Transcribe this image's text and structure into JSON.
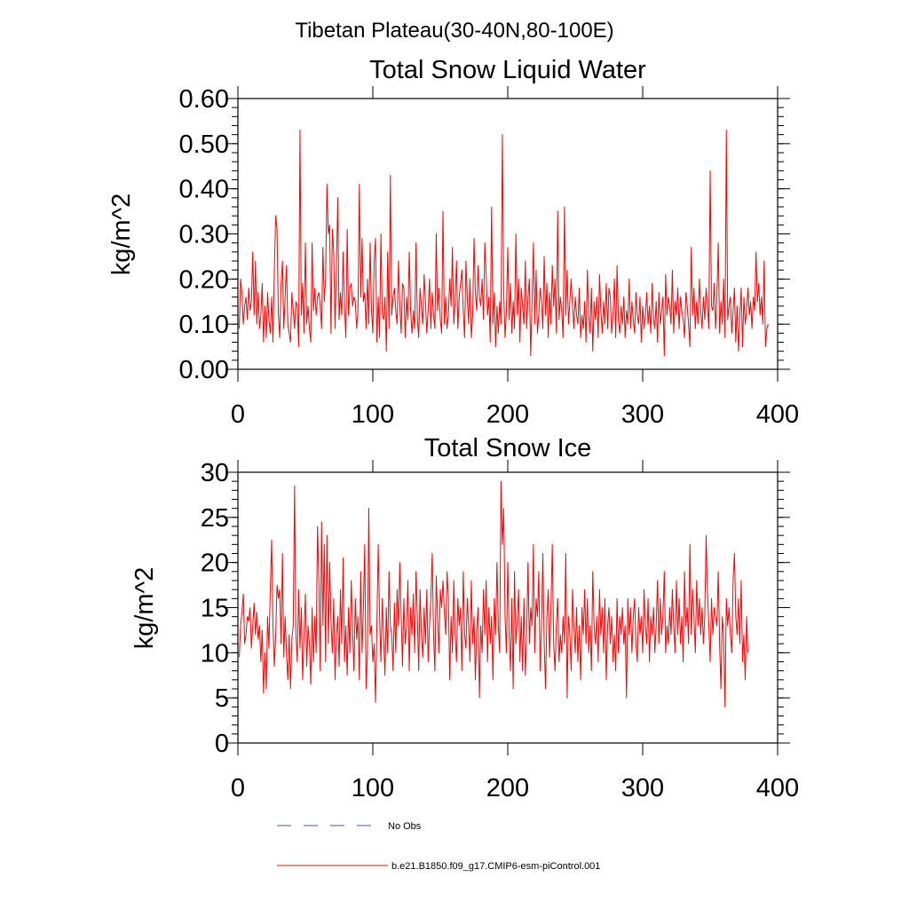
{
  "figure_title": "Tibetan Plateau(30-40N,80-100E)",
  "colors": {
    "model_line": "#ff0000",
    "obs_line": "#4a5a9a"
  },
  "legend": {
    "obs_label": "No Obs",
    "model_label": "b.e21.B1850.f09_g17.CMIP6-esm-piControl.001"
  },
  "chart_data": [
    {
      "type": "line",
      "title": "Total Snow Liquid Water",
      "xlabel": "",
      "ylabel": "kg/m^2",
      "xlim": [
        0,
        400
      ],
      "ylim": [
        0,
        0.6
      ],
      "xticks": [
        0,
        100,
        200,
        300,
        400
      ],
      "xtick_labels": [
        "0",
        "100",
        "200",
        "300",
        "400"
      ],
      "yticks": [
        0,
        0.1,
        0.2,
        0.3,
        0.4,
        0.5,
        0.6
      ],
      "ytick_labels": [
        "0.00",
        "0.10",
        "0.20",
        "0.30",
        "0.40",
        "0.50",
        "0.60"
      ],
      "series": [
        {
          "name": "b.e21.B1850.f09_g17.CMIP6-esm-piControl.001",
          "x_start": 1,
          "values": [
            0.09,
            0.2,
            0.17,
            0.1,
            0.14,
            0.16,
            0.11,
            0.18,
            0.13,
            0.15,
            0.26,
            0.12,
            0.24,
            0.1,
            0.17,
            0.09,
            0.12,
            0.19,
            0.06,
            0.14,
            0.07,
            0.17,
            0.11,
            0.08,
            0.16,
            0.06,
            0.22,
            0.34,
            0.31,
            0.12,
            0.07,
            0.19,
            0.24,
            0.09,
            0.16,
            0.23,
            0.1,
            0.08,
            0.06,
            0.17,
            0.13,
            0.09,
            0.15,
            0.14,
            0.05,
            0.53,
            0.12,
            0.19,
            0.08,
            0.28,
            0.1,
            0.14,
            0.09,
            0.06,
            0.28,
            0.13,
            0.18,
            0.12,
            0.16,
            0.17,
            0.14,
            0.09,
            0.27,
            0.15,
            0.2,
            0.41,
            0.3,
            0.32,
            0.08,
            0.31,
            0.26,
            0.09,
            0.22,
            0.38,
            0.11,
            0.17,
            0.12,
            0.26,
            0.14,
            0.07,
            0.31,
            0.12,
            0.18,
            0.19,
            0.14,
            0.16,
            0.15,
            0.09,
            0.13,
            0.41,
            0.16,
            0.29,
            0.15,
            0.17,
            0.09,
            0.2,
            0.1,
            0.28,
            0.13,
            0.08,
            0.24,
            0.29,
            0.06,
            0.16,
            0.07,
            0.3,
            0.12,
            0.11,
            0.16,
            0.04,
            0.26,
            0.09,
            0.43,
            0.12,
            0.16,
            0.18,
            0.13,
            0.1,
            0.24,
            0.14,
            0.08,
            0.19,
            0.18,
            0.07,
            0.16,
            0.11,
            0.26,
            0.13,
            0.08,
            0.13,
            0.09,
            0.28,
            0.11,
            0.07,
            0.18,
            0.14,
            0.1,
            0.21,
            0.15,
            0.08,
            0.13,
            0.2,
            0.09,
            0.17,
            0.12,
            0.09,
            0.3,
            0.13,
            0.18,
            0.11,
            0.08,
            0.35,
            0.1,
            0.16,
            0.09,
            0.12,
            0.2,
            0.14,
            0.27,
            0.1,
            0.15,
            0.24,
            0.09,
            0.16,
            0.19,
            0.22,
            0.13,
            0.07,
            0.24,
            0.16,
            0.1,
            0.2,
            0.07,
            0.12,
            0.29,
            0.17,
            0.13,
            0.23,
            0.16,
            0.14,
            0.2,
            0.11,
            0.28,
            0.21,
            0.12,
            0.16,
            0.06,
            0.36,
            0.1,
            0.17,
            0.05,
            0.14,
            0.08,
            0.15,
            0.1,
            0.52,
            0.17,
            0.07,
            0.13,
            0.27,
            0.11,
            0.19,
            0.08,
            0.15,
            0.09,
            0.3,
            0.12,
            0.2,
            0.06,
            0.18,
            0.14,
            0.1,
            0.24,
            0.09,
            0.16,
            0.2,
            0.03,
            0.15,
            0.28,
            0.1,
            0.22,
            0.08,
            0.12,
            0.18,
            0.15,
            0.09,
            0.25,
            0.12,
            0.19,
            0.07,
            0.17,
            0.1,
            0.23,
            0.14,
            0.2,
            0.08,
            0.35,
            0.11,
            0.16,
            0.13,
            0.07,
            0.36,
            0.12,
            0.22,
            0.1,
            0.15,
            0.2,
            0.14,
            0.09,
            0.16,
            0.12,
            0.1,
            0.18,
            0.07,
            0.12,
            0.09,
            0.15,
            0.06,
            0.22,
            0.12,
            0.08,
            0.18,
            0.04,
            0.15,
            0.11,
            0.16,
            0.07,
            0.21,
            0.13,
            0.08,
            0.15,
            0.1,
            0.19,
            0.09,
            0.18,
            0.16,
            0.08,
            0.12,
            0.2,
            0.07,
            0.23,
            0.11,
            0.08,
            0.14,
            0.1,
            0.16,
            0.07,
            0.13,
            0.1,
            0.2,
            0.09,
            0.15,
            0.11,
            0.08,
            0.17,
            0.12,
            0.1,
            0.16,
            0.06,
            0.14,
            0.09,
            0.12,
            0.17,
            0.1,
            0.14,
            0.08,
            0.19,
            0.11,
            0.09,
            0.15,
            0.06,
            0.17,
            0.1,
            0.13,
            0.16,
            0.03,
            0.21,
            0.12,
            0.16,
            0.14,
            0.1,
            0.22,
            0.08,
            0.15,
            0.12,
            0.18,
            0.09,
            0.16,
            0.13,
            0.11,
            0.07,
            0.17,
            0.14,
            0.1,
            0.05,
            0.27,
            0.12,
            0.18,
            0.09,
            0.15,
            0.1,
            0.2,
            0.13,
            0.09,
            0.16,
            0.11,
            0.18,
            0.14,
            0.09,
            0.44,
            0.14,
            0.13,
            0.19,
            0.09,
            0.16,
            0.28,
            0.08,
            0.15,
            0.1,
            0.2,
            0.07,
            0.53,
            0.11,
            0.14,
            0.16,
            0.08,
            0.13,
            0.18,
            0.06,
            0.14,
            0.04,
            0.12,
            0.18,
            0.05,
            0.16,
            0.1,
            0.13,
            0.18,
            0.12,
            0.15,
            0.09,
            0.16,
            0.13,
            0.26,
            0.15,
            0.19,
            0.12,
            0.16,
            0.1,
            0.24,
            0.05,
            0.09,
            0.1
          ]
        }
      ]
    },
    {
      "type": "line",
      "title": "Total Snow Ice",
      "xlabel": "",
      "ylabel": "kg/m^2",
      "xlim": [
        0,
        400
      ],
      "ylim": [
        0,
        30
      ],
      "xticks": [
        0,
        100,
        200,
        300,
        400
      ],
      "xtick_labels": [
        "0",
        "100",
        "200",
        "300",
        "400"
      ],
      "yticks": [
        0,
        5,
        10,
        15,
        20,
        25,
        30
      ],
      "ytick_labels": [
        "0",
        "5",
        "10",
        "15",
        "20",
        "25",
        "30"
      ],
      "series": [
        {
          "name": "b.e21.B1850.f09_g17.CMIP6-esm-piControl.001",
          "x_start": 1,
          "values": [
            9.5,
            13,
            14.5,
            16.5,
            11,
            12,
            14,
            13.5,
            15,
            10.5,
            13,
            15.5,
            12,
            14.5,
            11.5,
            13,
            9,
            12.5,
            5.5,
            10,
            6,
            14,
            10.5,
            17,
            22.5,
            13,
            8.5,
            12,
            17.5,
            16,
            17,
            11,
            21,
            9.5,
            14,
            10,
            7,
            12,
            6,
            11.5,
            13,
            28.5,
            12,
            9,
            17,
            10.5,
            15,
            7,
            12,
            16.5,
            8.5,
            13,
            11,
            6.5,
            15,
            9,
            14,
            10,
            24,
            18,
            8,
            24.5,
            13,
            22,
            9,
            23,
            11,
            20,
            13.5,
            10,
            16,
            7,
            12,
            14,
            8.5,
            17,
            11,
            20.5,
            9,
            13,
            7.5,
            15,
            10,
            18,
            12.5,
            8,
            16,
            11.5,
            14,
            7,
            19,
            10,
            15,
            22,
            6,
            10,
            26,
            12,
            13,
            9,
            11,
            4.5,
            13,
            22,
            14,
            9,
            16,
            11.5,
            7.5,
            15,
            10,
            19,
            13,
            12,
            8,
            15.5,
            10,
            17,
            13,
            20,
            14,
            8.5,
            16,
            11,
            13,
            18,
            8,
            15,
            12,
            16.5,
            10,
            19,
            14,
            8,
            17,
            12,
            9.5,
            15,
            11,
            17,
            9,
            13,
            16,
            21,
            12,
            8,
            18.5,
            14,
            10,
            17,
            15,
            18,
            14.5,
            12,
            19,
            16,
            7,
            14,
            10,
            18,
            12,
            9,
            16,
            13,
            15,
            8,
            19,
            12,
            10.5,
            16,
            13,
            9,
            18,
            11,
            14,
            7,
            12.5,
            15,
            5,
            13,
            10,
            17,
            12,
            18,
            9,
            15,
            11,
            14,
            7,
            16,
            12,
            20,
            13,
            10,
            29,
            22,
            26,
            14,
            10,
            20,
            12,
            8,
            16,
            6,
            19,
            11,
            13.5,
            17,
            9,
            14,
            8,
            16,
            7.5,
            12,
            20,
            11,
            15,
            13,
            22,
            10,
            16,
            14,
            19,
            8,
            13,
            21,
            11,
            6,
            14,
            17,
            9.5,
            15,
            22,
            11,
            8,
            13,
            16,
            9,
            12,
            10,
            14,
            11,
            21,
            5,
            14,
            12,
            8,
            17,
            13,
            10,
            15,
            9,
            13,
            7,
            15,
            12,
            17,
            11,
            16,
            10,
            13,
            8,
            19,
            13,
            11,
            14,
            9,
            17,
            12,
            15,
            10,
            16,
            7,
            13,
            15,
            11,
            14,
            9,
            12,
            8,
            16,
            10,
            14,
            12,
            15,
            11,
            13,
            5,
            16,
            12,
            15,
            10,
            14,
            16,
            11,
            9,
            15,
            12,
            14,
            10,
            17,
            13,
            11,
            16,
            9,
            14,
            12,
            15,
            10,
            13,
            18,
            11,
            16,
            12,
            14,
            19,
            10,
            13,
            11,
            15,
            12,
            17,
            13,
            10,
            18,
            12,
            16,
            11,
            14,
            9,
            19,
            13,
            15,
            11,
            22,
            12,
            17,
            14,
            10,
            18,
            13,
            16,
            12,
            15,
            11,
            14,
            23,
            17,
            13,
            9,
            16,
            12,
            15,
            14,
            13,
            19,
            11,
            6,
            14,
            12,
            4,
            16,
            13,
            15,
            12,
            10,
            18,
            21,
            14,
            12,
            16,
            11,
            18,
            9,
            12,
            7,
            14,
            10
          ]
        }
      ]
    }
  ]
}
